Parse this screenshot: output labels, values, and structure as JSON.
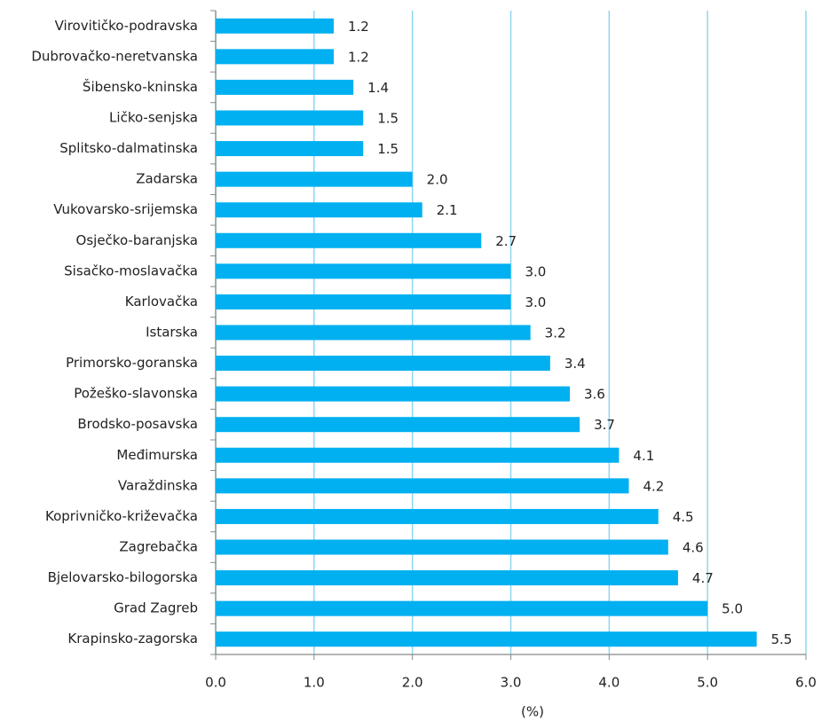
{
  "chart_data": {
    "type": "bar",
    "orientation": "horizontal",
    "categories": [
      "Virovitičko-podravska",
      "Dubrovačko-neretvanska",
      "Šibensko-kninska",
      "Ličko-senjska",
      "Splitsko-dalmatinska",
      "Zadarska",
      "Vukovarsko-srijemska",
      "Osječko-baranjska",
      "Sisačko-moslavačka",
      "Karlovačka",
      "Istarska",
      "Primorsko-goranska",
      "Požeško-slavonska",
      "Brodsko-posavska",
      "Međimurska",
      "Varaždinska",
      "Koprivničko-križevačka",
      "Zagrebačka",
      "Bjelovarsko-bilogorska",
      "Grad Zagreb",
      "Krapinsko-zagorska"
    ],
    "values": [
      1.2,
      1.2,
      1.4,
      1.5,
      1.5,
      2.0,
      2.1,
      2.7,
      3.0,
      3.0,
      3.2,
      3.4,
      3.6,
      3.7,
      4.1,
      4.2,
      4.5,
      4.6,
      4.7,
      5.0,
      5.5
    ],
    "value_labels": [
      "1.2",
      "1.2",
      "1.4",
      "1.5",
      "1.5",
      "2.0",
      "2.1",
      "2.7",
      "3.0",
      "3.0",
      "3.2",
      "3.4",
      "3.6",
      "3.7",
      "4.1",
      "4.2",
      "4.5",
      "4.6",
      "4.7",
      "5.0",
      "5.5"
    ],
    "color": "#00b0f0",
    "xlabel": "(%)",
    "xlim": [
      0,
      6
    ],
    "xticks": [
      {
        "value": 0,
        "label": "0.0"
      },
      {
        "value": 1,
        "label": "1.0"
      },
      {
        "value": 2,
        "label": "2.0"
      },
      {
        "value": 3,
        "label": "3.0"
      },
      {
        "value": 4,
        "label": "4.0"
      },
      {
        "value": 5,
        "label": "5.0"
      },
      {
        "value": 6,
        "label": "6.0"
      }
    ],
    "grid": true,
    "grid_color": "#8fd6f2"
  }
}
